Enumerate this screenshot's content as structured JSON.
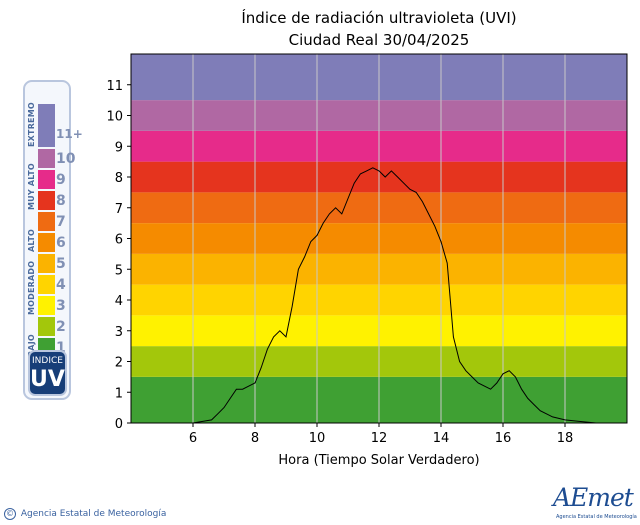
{
  "chart_data": {
    "type": "line",
    "title": "Índice de radiación ultravioleta (UVI)",
    "subtitle": "Ciudad Real 30/04/2025",
    "xlabel": "Hora (Tiempo Solar Verdadero)",
    "ylabel": "",
    "xlim": [
      4,
      20
    ],
    "ylim": [
      0,
      12
    ],
    "x_ticks": [
      6,
      8,
      10,
      12,
      14,
      16,
      18
    ],
    "y_ticks": [
      0,
      1,
      2,
      3,
      4,
      5,
      6,
      7,
      8,
      9,
      10,
      11
    ],
    "grid": "vertical",
    "background_bands": [
      {
        "from": 0,
        "to": 1.5,
        "color": "#3fa033"
      },
      {
        "from": 1.5,
        "to": 2.5,
        "color": "#a3c70b"
      },
      {
        "from": 2.5,
        "to": 3.5,
        "color": "#fff200"
      },
      {
        "from": 3.5,
        "to": 4.5,
        "color": "#ffd400"
      },
      {
        "from": 4.5,
        "to": 5.5,
        "color": "#fbb300"
      },
      {
        "from": 5.5,
        "to": 6.5,
        "color": "#f58b00"
      },
      {
        "from": 6.5,
        "to": 7.5,
        "color": "#ef6b12"
      },
      {
        "from": 7.5,
        "to": 8.5,
        "color": "#e5341e"
      },
      {
        "from": 8.5,
        "to": 9.5,
        "color": "#e62b8a"
      },
      {
        "from": 9.5,
        "to": 10.5,
        "color": "#b068a3"
      },
      {
        "from": 10.5,
        "to": 12,
        "color": "#7f7db8"
      }
    ],
    "series": [
      {
        "color": "#000000",
        "x": [
          4.0,
          5.0,
          6.0,
          6.6,
          6.8,
          7.0,
          7.2,
          7.4,
          7.6,
          7.8,
          8.0,
          8.2,
          8.4,
          8.6,
          8.8,
          9.0,
          9.2,
          9.4,
          9.6,
          9.8,
          10.0,
          10.2,
          10.4,
          10.6,
          10.8,
          11.0,
          11.2,
          11.4,
          11.6,
          11.8,
          12.0,
          12.2,
          12.4,
          12.6,
          12.8,
          13.0,
          13.2,
          13.4,
          13.6,
          13.8,
          14.0,
          14.2,
          14.3,
          14.4,
          14.6,
          14.8,
          15.0,
          15.2,
          15.4,
          15.6,
          15.8,
          16.0,
          16.2,
          16.4,
          16.6,
          16.8,
          17.0,
          17.2,
          17.4,
          17.6,
          17.8,
          18.0,
          18.5,
          19.0,
          20.0
        ],
        "y": [
          0.0,
          0.0,
          0.0,
          0.1,
          0.3,
          0.5,
          0.8,
          1.1,
          1.1,
          1.2,
          1.3,
          1.8,
          2.4,
          2.8,
          3.0,
          2.8,
          3.8,
          5.0,
          5.4,
          5.9,
          6.1,
          6.5,
          6.8,
          7.0,
          6.8,
          7.3,
          7.8,
          8.1,
          8.2,
          8.3,
          8.2,
          8.0,
          8.2,
          8.0,
          7.8,
          7.6,
          7.5,
          7.2,
          6.8,
          6.4,
          5.9,
          5.2,
          4.0,
          2.8,
          2.0,
          1.7,
          1.5,
          1.3,
          1.2,
          1.1,
          1.3,
          1.6,
          1.7,
          1.5,
          1.1,
          0.8,
          0.6,
          0.4,
          0.3,
          0.2,
          0.15,
          0.1,
          0.05,
          0.0,
          0.0
        ]
      }
    ]
  },
  "legend": {
    "categories": [
      {
        "label": "BAJO",
        "from": 1,
        "to": 2
      },
      {
        "label": "MODERADO",
        "from": 3,
        "to": 5
      },
      {
        "label": "ALTO",
        "from": 6,
        "to": 7
      },
      {
        "label": "MUY ALTO",
        "from": 8,
        "to": 10
      },
      {
        "label": "EXTREMO",
        "from": 11,
        "to": 11
      }
    ],
    "levels": [
      {
        "num": "1",
        "color": "#3fa033"
      },
      {
        "num": "2",
        "color": "#a3c70b"
      },
      {
        "num": "3",
        "color": "#fff200"
      },
      {
        "num": "4",
        "color": "#ffd400"
      },
      {
        "num": "5",
        "color": "#fbb300"
      },
      {
        "num": "6",
        "color": "#f58b00"
      },
      {
        "num": "7",
        "color": "#ef6b12"
      },
      {
        "num": "8",
        "color": "#e5341e"
      },
      {
        "num": "9",
        "color": "#e62b8a"
      },
      {
        "num": "10",
        "color": "#b068a3"
      },
      {
        "num": "11+",
        "color": "#7f7db8"
      }
    ],
    "badge_top": "INDICE",
    "badge_main": "UV"
  },
  "footer": {
    "copyright": "©",
    "agency": "Agencia Estatal de Meteorología",
    "logo": "AEmet",
    "logo_sub": "Agencia Estatal de Meteorología"
  }
}
